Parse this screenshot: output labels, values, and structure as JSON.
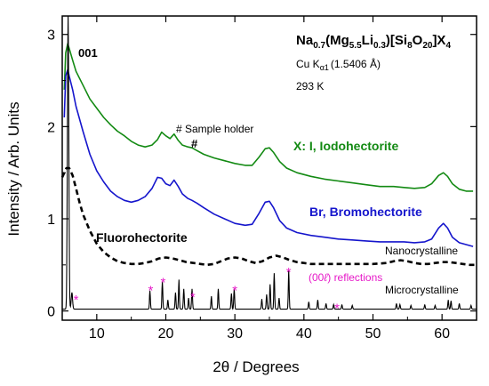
{
  "chart_data": {
    "type": "line",
    "title": "Na0.7(Mg5.5Li0.3)[Si8O20]X4",
    "title_parts": {
      "p1": "Na",
      "s1": "0.7",
      "p2": "(Mg",
      "s2": "5.5",
      "p3": "Li",
      "s3": "0.3",
      "p4": ")[Si",
      "s4": "8",
      "p5": "O",
      "s5": "20",
      "p6": "]X",
      "s6": "4"
    },
    "subtitle_parts": {
      "main": "Cu K",
      "sub": "α1",
      "tail": "(1.5406 Å)"
    },
    "temperature": "293 K",
    "xlabel": "2θ / Degrees",
    "ylabel": "Intensity / Arb. Units",
    "xlim": [
      5,
      65
    ],
    "ylim": [
      -0.1,
      3.2
    ],
    "x_ticks": [
      10,
      20,
      30,
      40,
      50,
      60
    ],
    "y_ticks": [
      0,
      1,
      2,
      3
    ],
    "grid": false,
    "colors": {
      "iodo": "#138a13",
      "bromo": "#1515cc",
      "fluoro": "#000000",
      "micro": "#000000",
      "star": "#e619c8"
    },
    "series": [
      {
        "name": "X: I, Iodohectorite",
        "style": "solid",
        "x": [
          5.3,
          5.5,
          5.8,
          6.0,
          6.5,
          7.0,
          8.0,
          9.0,
          10,
          11,
          12,
          13,
          14,
          15,
          16,
          17,
          18,
          18.8,
          19.4,
          20.0,
          20.6,
          21.2,
          21.8,
          22.4,
          23.2,
          23.8,
          24.5,
          25.5,
          27,
          28.5,
          30,
          31.5,
          32.5,
          33.5,
          34.4,
          35.0,
          35.6,
          36.5,
          37.5,
          39,
          41,
          43,
          45,
          47,
          49,
          51,
          53,
          54.5,
          56,
          57.5,
          58.5,
          59.5,
          60.2,
          60.8,
          61.5,
          62.5,
          63.5,
          64.5
        ],
        "y": [
          2.4,
          2.8,
          2.9,
          2.85,
          2.72,
          2.6,
          2.45,
          2.3,
          2.2,
          2.1,
          2.02,
          1.95,
          1.9,
          1.84,
          1.8,
          1.78,
          1.8,
          1.86,
          1.94,
          1.9,
          1.87,
          1.92,
          1.85,
          1.8,
          1.78,
          1.77,
          1.74,
          1.7,
          1.66,
          1.63,
          1.6,
          1.58,
          1.58,
          1.67,
          1.76,
          1.77,
          1.72,
          1.62,
          1.55,
          1.5,
          1.46,
          1.43,
          1.41,
          1.39,
          1.37,
          1.35,
          1.35,
          1.34,
          1.33,
          1.34,
          1.38,
          1.47,
          1.5,
          1.46,
          1.38,
          1.32,
          1.3,
          1.3
        ]
      },
      {
        "name": "Br, Bromohectorite",
        "style": "solid",
        "x": [
          5.3,
          5.5,
          5.8,
          6.0,
          6.5,
          7.0,
          8.0,
          9.0,
          10,
          11,
          12,
          13,
          14,
          15,
          16,
          17,
          18,
          18.8,
          19.4,
          20.0,
          20.6,
          21.2,
          21.8,
          22.4,
          23.2,
          23.8,
          24.5,
          25.5,
          27,
          28.5,
          30,
          31.5,
          32.5,
          33.5,
          34.4,
          35.0,
          35.6,
          36.5,
          37.5,
          39,
          41,
          43,
          45,
          47,
          49,
          51,
          53,
          54.5,
          56,
          57.5,
          58.5,
          59.5,
          60.2,
          60.8,
          61.5,
          62.5,
          63.5,
          64.5
        ],
        "y": [
          2.1,
          2.55,
          2.62,
          2.55,
          2.4,
          2.22,
          1.95,
          1.7,
          1.52,
          1.4,
          1.3,
          1.24,
          1.2,
          1.18,
          1.2,
          1.24,
          1.33,
          1.45,
          1.44,
          1.38,
          1.36,
          1.42,
          1.35,
          1.27,
          1.22,
          1.2,
          1.17,
          1.12,
          1.05,
          1.0,
          0.95,
          0.93,
          0.94,
          1.06,
          1.18,
          1.19,
          1.12,
          0.98,
          0.9,
          0.85,
          0.82,
          0.8,
          0.78,
          0.77,
          0.76,
          0.75,
          0.75,
          0.75,
          0.74,
          0.75,
          0.78,
          0.9,
          0.95,
          0.9,
          0.8,
          0.74,
          0.72,
          0.7
        ]
      },
      {
        "name": "Fluorohectorite",
        "style": "dashed",
        "x": [
          5.0,
          5.3,
          5.6,
          6.0,
          6.5,
          7.0,
          7.5,
          8,
          9,
          10,
          11,
          12,
          13,
          14,
          15,
          16,
          17,
          18,
          19,
          20,
          21,
          22,
          23,
          24,
          25,
          26,
          27,
          28,
          29,
          30,
          31,
          32,
          33,
          34,
          35,
          36,
          37,
          38,
          39,
          40,
          41,
          42,
          44,
          46,
          48,
          50,
          52,
          53,
          54,
          55,
          56,
          57,
          58,
          59,
          60,
          61,
          62,
          63,
          64,
          65
        ],
        "y": [
          1.45,
          1.5,
          1.55,
          1.55,
          1.47,
          1.33,
          1.18,
          1.05,
          0.87,
          0.73,
          0.64,
          0.58,
          0.54,
          0.52,
          0.51,
          0.51,
          0.52,
          0.54,
          0.57,
          0.58,
          0.57,
          0.55,
          0.53,
          0.52,
          0.51,
          0.5,
          0.51,
          0.54,
          0.57,
          0.58,
          0.57,
          0.54,
          0.52,
          0.54,
          0.58,
          0.6,
          0.58,
          0.55,
          0.53,
          0.52,
          0.51,
          0.51,
          0.51,
          0.51,
          0.51,
          0.51,
          0.52,
          0.54,
          0.55,
          0.54,
          0.52,
          0.51,
          0.51,
          0.52,
          0.53,
          0.53,
          0.52,
          0.51,
          0.5,
          0.5
        ]
      },
      {
        "name": "Microcrystalline",
        "style": "peaks",
        "baseline": 0.02,
        "peaks": [
          [
            5.85,
            3.18
          ],
          [
            6.4,
            0.18
          ],
          [
            17.7,
            0.2
          ],
          [
            19.5,
            0.3
          ],
          [
            20.3,
            0.1
          ],
          [
            21.4,
            0.18
          ],
          [
            21.9,
            0.32
          ],
          [
            22.6,
            0.22
          ],
          [
            23.3,
            0.12
          ],
          [
            23.8,
            0.22
          ],
          [
            26.6,
            0.14
          ],
          [
            27.6,
            0.22
          ],
          [
            29.5,
            0.17
          ],
          [
            29.9,
            0.22
          ],
          [
            33.9,
            0.11
          ],
          [
            34.6,
            0.16
          ],
          [
            35.1,
            0.27
          ],
          [
            35.7,
            0.39
          ],
          [
            36.4,
            0.12
          ],
          [
            37.8,
            0.42
          ],
          [
            40.7,
            0.08
          ],
          [
            42.0,
            0.1
          ],
          [
            43.2,
            0.06
          ],
          [
            44.3,
            0.05
          ],
          [
            45.5,
            0.05
          ],
          [
            47.0,
            0.04
          ],
          [
            53.4,
            0.06
          ],
          [
            53.9,
            0.05
          ],
          [
            55.5,
            0.04
          ],
          [
            57.5,
            0.05
          ],
          [
            59.0,
            0.04
          ],
          [
            60.9,
            0.1
          ],
          [
            61.3,
            0.09
          ],
          [
            62.5,
            0.06
          ],
          [
            64.2,
            0.04
          ]
        ]
      }
    ],
    "stars": [
      [
        7.0,
        0.17
      ],
      [
        17.8,
        0.27
      ],
      [
        19.6,
        0.36
      ],
      [
        23.9,
        0.2
      ],
      [
        30.0,
        0.27
      ],
      [
        37.8,
        0.47
      ],
      [
        44.8,
        0.08
      ]
    ],
    "annotations": {
      "peak_001": "001",
      "sample_holder": "# Sample holder",
      "hash": "#",
      "iodo_label": "X: I, Iodohectorite",
      "bromo_label": "Br, Bromohectorite",
      "fluoro_label": "Fluorohectorite",
      "nano_label": "Nanocrystalline",
      "micro_label": "Microcrystalline",
      "reflections_parts": {
        "a": "(00",
        "b": "ℓ",
        "c": ") reflections"
      },
      "star": "*"
    }
  }
}
